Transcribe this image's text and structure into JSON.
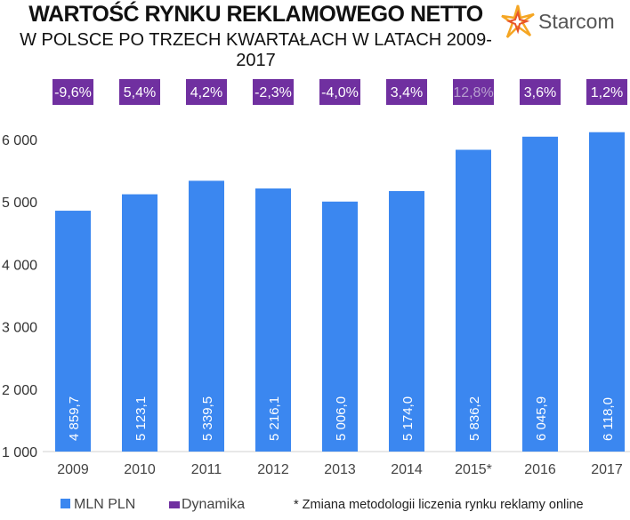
{
  "title": "WARTOŚĆ RYNKU REKLAMOWEGO NETTO",
  "subtitle": "W POLSCE PO TRZECH KWARTAŁACH  W LATACH 2009-2017",
  "logo_text": "Starcom",
  "footnote": "* Zmiana metodologii liczenia rynku reklamy online",
  "colors": {
    "bar": "#3b87f0",
    "badge": "#7030a0",
    "badge_text": "#ffffff",
    "badge_text_dim": "#b8a0d0"
  },
  "chart_data": {
    "type": "bar",
    "categories": [
      "2009",
      "2010",
      "2011",
      "2012",
      "2013",
      "2014",
      "2015*",
      "2016",
      "2017"
    ],
    "series": [
      {
        "name": "MLN PLN",
        "values": [
          4859.7,
          5123.1,
          5339.5,
          5216.1,
          5006.0,
          5174.0,
          5836.2,
          6045.9,
          6118.0
        ],
        "labels": [
          "4 859,7",
          "5 123,1",
          "5 339,5",
          "5 216,1",
          "5 006,0",
          "5 174,0",
          "5 836,2",
          "6 045,9",
          "6 118,0"
        ]
      },
      {
        "name": "Dynamika",
        "labels": [
          "-9,6%",
          "5,4%",
          "4,2%",
          "-2,3%",
          "-4,0%",
          "3,4%",
          "12,8%",
          "3,6%",
          "1,2%"
        ]
      }
    ],
    "yticks": [
      "1 000",
      "2 000",
      "3 000",
      "4 000",
      "5 000",
      "6 000"
    ],
    "ylim": [
      1000,
      6000
    ],
    "legend_position": "bottom-left",
    "grid": false
  }
}
